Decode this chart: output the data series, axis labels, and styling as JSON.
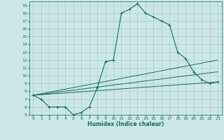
{
  "xlabel": "Humidex (Indice chaleur)",
  "xlim": [
    -0.5,
    23.5
  ],
  "ylim": [
    5,
    19.5
  ],
  "xticks": [
    0,
    1,
    2,
    3,
    4,
    5,
    6,
    7,
    8,
    9,
    10,
    11,
    12,
    13,
    14,
    15,
    16,
    17,
    18,
    19,
    20,
    21,
    22,
    23
  ],
  "yticks": [
    5,
    6,
    7,
    8,
    9,
    10,
    11,
    12,
    13,
    14,
    15,
    16,
    17,
    18,
    19
  ],
  "bg_color": "#cce8e4",
  "line_color": "#1a6b5e",
  "grid_color": "#aacdc8",
  "main_line": {
    "x": [
      0,
      1,
      2,
      3,
      4,
      5,
      6,
      7,
      8,
      9,
      10,
      11,
      12,
      13,
      14,
      15,
      16,
      17,
      18,
      19,
      20,
      21,
      22,
      23
    ],
    "y": [
      7.5,
      7.0,
      6.0,
      6.0,
      6.0,
      5.0,
      5.3,
      6.0,
      8.5,
      11.8,
      12.0,
      18.0,
      18.5,
      19.2,
      18.0,
      17.5,
      17.0,
      16.5,
      13.0,
      12.2,
      10.5,
      9.5,
      9.0,
      9.2
    ]
  },
  "straight_lines": [
    {
      "x": [
        0,
        23
      ],
      "y": [
        7.5,
        12.0
      ]
    },
    {
      "x": [
        0,
        23
      ],
      "y": [
        7.5,
        10.5
      ]
    },
    {
      "x": [
        0,
        23
      ],
      "y": [
        7.5,
        9.2
      ]
    }
  ]
}
